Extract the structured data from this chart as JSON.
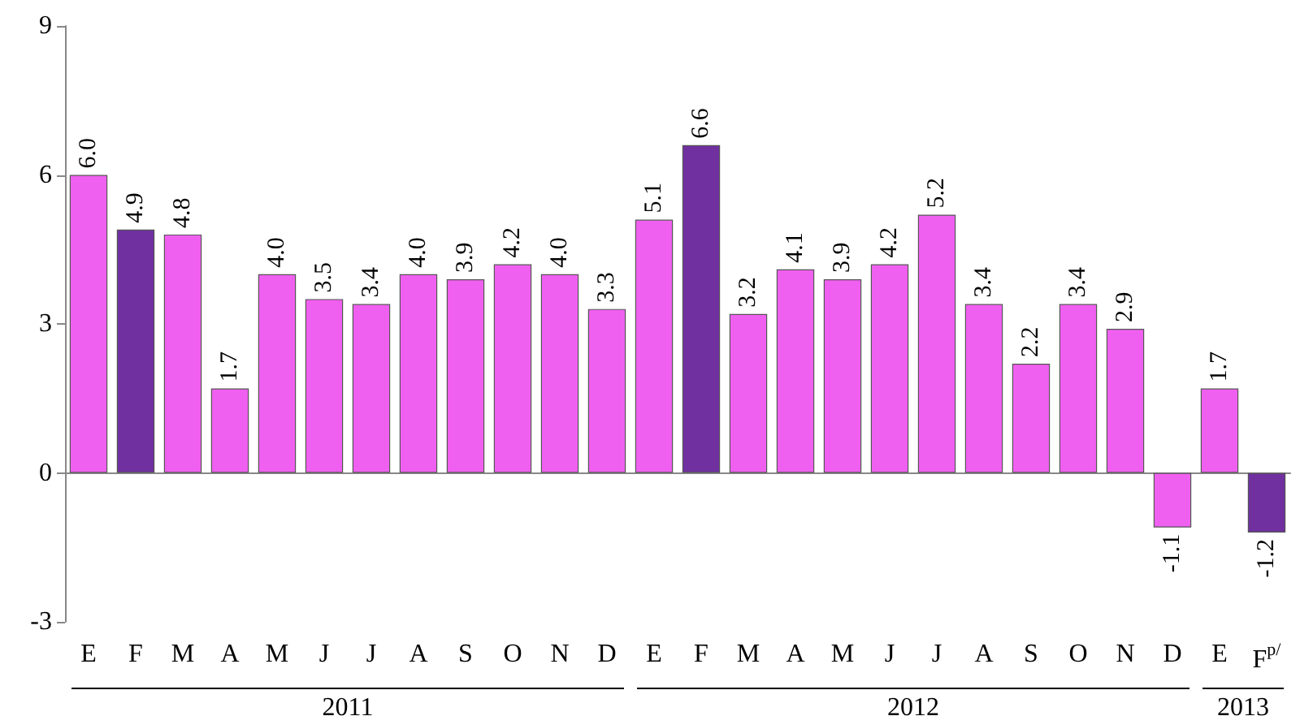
{
  "chart_data": {
    "type": "bar",
    "categories": [
      "E",
      "F",
      "M",
      "A",
      "M",
      "J",
      "J",
      "A",
      "S",
      "O",
      "N",
      "D",
      "E",
      "F",
      "M",
      "A",
      "M",
      "J",
      "J",
      "A",
      "S",
      "O",
      "N",
      "D",
      "E",
      "F$^{p/}$"
    ],
    "values": [
      6.0,
      4.9,
      4.8,
      1.7,
      4.0,
      3.5,
      3.4,
      4.0,
      3.9,
      4.2,
      4.0,
      3.3,
      5.1,
      6.6,
      3.2,
      4.1,
      3.9,
      4.2,
      5.2,
      3.4,
      2.2,
      3.4,
      2.9,
      -1.1,
      1.7,
      -1.2
    ],
    "value_labels": [
      "6.0",
      "4.9",
      "4.8",
      "1.7",
      "4.0",
      "3.5",
      "3.4",
      "4.0",
      "3.9",
      "4.2",
      "4.0",
      "3.3",
      "5.1",
      "6.6",
      "3.2",
      "4.1",
      "3.9",
      "4.2",
      "5.2",
      "3.4",
      "2.2",
      "3.4",
      "2.9",
      "-1.1",
      "1.7",
      "-1.2"
    ],
    "colors": [
      "#f060f0",
      "#7030a0",
      "#f060f0",
      "#f060f0",
      "#f060f0",
      "#f060f0",
      "#f060f0",
      "#f060f0",
      "#f060f0",
      "#f060f0",
      "#f060f0",
      "#f060f0",
      "#f060f0",
      "#7030a0",
      "#f060f0",
      "#f060f0",
      "#f060f0",
      "#f060f0",
      "#f060f0",
      "#f060f0",
      "#f060f0",
      "#f060f0",
      "#f060f0",
      "#f060f0",
      "#f060f0",
      "#7030a0"
    ],
    "annotations": [
      "2011",
      "2012",
      "2013"
    ],
    "ylim": [
      -3,
      9
    ],
    "yticks": [
      -3,
      0,
      3,
      6,
      9
    ]
  }
}
